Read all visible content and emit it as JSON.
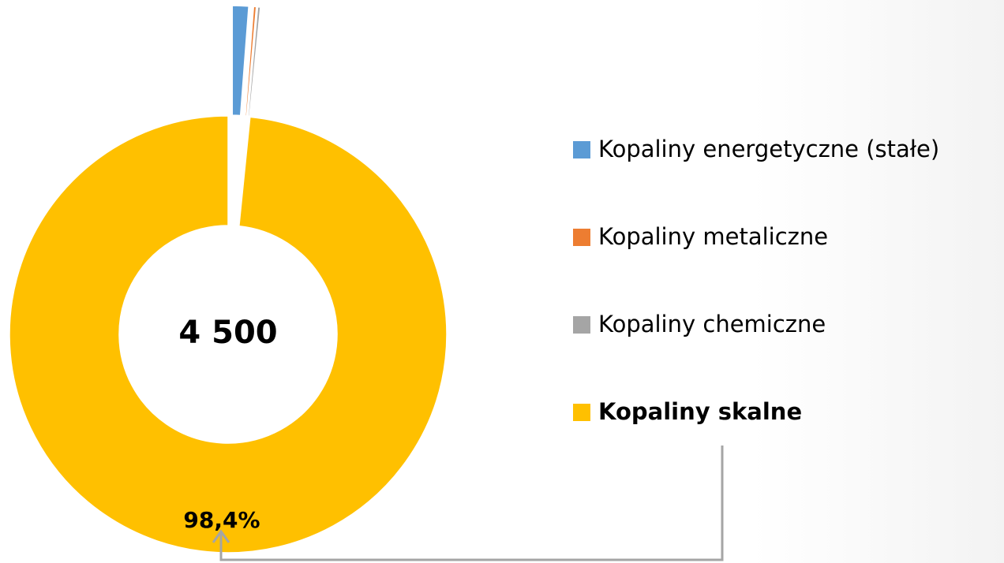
{
  "chart_data": {
    "type": "donut",
    "categories": [
      "Kopaliny energetyczne (stałe)",
      "Kopaliny metaliczne",
      "Kopaliny chemiczne",
      "Kopaliny skalne"
    ],
    "values": [
      1.2,
      0.2,
      0.2,
      98.4
    ],
    "value_labels": [
      null,
      null,
      null,
      "98,4%"
    ],
    "colors": [
      "#5b9bd5",
      "#ed7d31",
      "#a5a5a5",
      "#ffc000"
    ],
    "center_label": "4 500",
    "highlight_index": 3,
    "legend": "right"
  }
}
